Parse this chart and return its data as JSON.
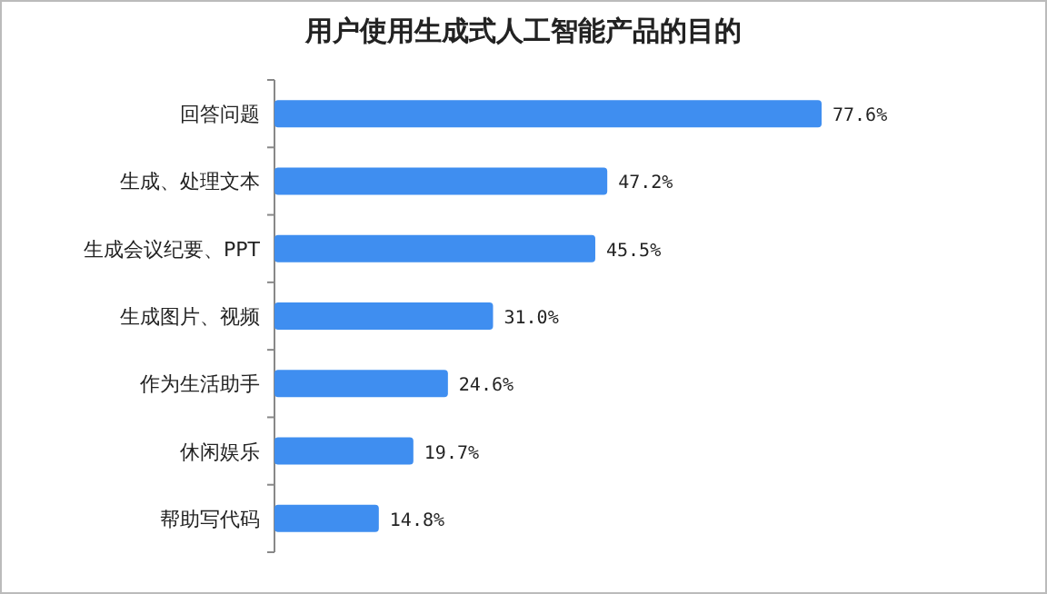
{
  "chart_data": {
    "type": "bar",
    "orientation": "horizontal",
    "title": "用户使用生成式人工智能产品的目的",
    "categories": [
      "回答问题",
      "生成、处理文本",
      "生成会议纪要、PPT",
      "生成图片、视频",
      "作为生活助手",
      "休闲娱乐",
      "帮助写代码"
    ],
    "values": [
      77.6,
      47.2,
      45.5,
      31.0,
      24.6,
      19.7,
      14.8
    ],
    "value_labels": [
      "77.6%",
      "47.2%",
      "45.5%",
      "31.0%",
      "24.6%",
      "19.7%",
      "14.8%"
    ],
    "color": "#3f8ef0"
  }
}
